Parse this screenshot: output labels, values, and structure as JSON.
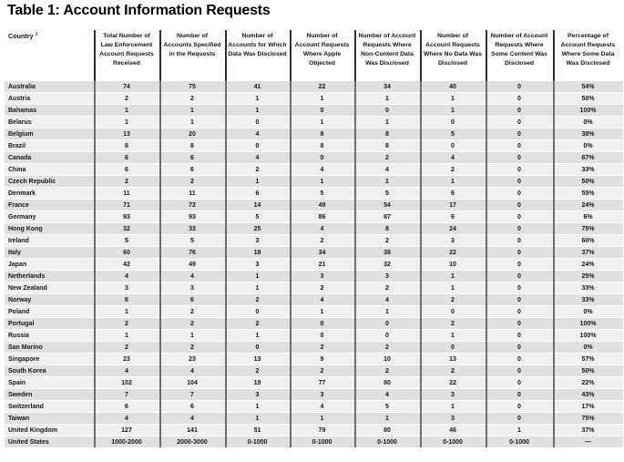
{
  "title": "Table 1: Account Information Requests",
  "table": {
    "country_header": "Country",
    "country_header_sup": "2",
    "columns": [
      "Total Number of\nLaw Enforcement\nAccount Requests\nReceived",
      "Number of\nAccounts Specified\nin the Requests",
      "Number of\nAccounts for Which\nData Was Disclosed",
      "Number of\nAccount Requests\nWhere Apple\nObjected",
      "Number of Account\nRequests Where\nNon-Content Data\nWas Disclosed",
      "Number of\nAccount Requests\nWhere No Data Was\nDisclosed",
      "Number of Account\nRequests Where\nSome Content Was\nDisclosed",
      "Percentage of\nAccount Requests\nWhere Some Data\nWas Disclosed"
    ],
    "rows": [
      {
        "country": "Australia",
        "values": [
          "74",
          "75",
          "41",
          "22",
          "34",
          "40",
          "0",
          "54%"
        ]
      },
      {
        "country": "Austria",
        "values": [
          "2",
          "2",
          "1",
          "1",
          "1",
          "1",
          "0",
          "50%"
        ]
      },
      {
        "country": "Bahamas",
        "values": [
          "1",
          "1",
          "1",
          "0",
          "0",
          "1",
          "0",
          "100%"
        ]
      },
      {
        "country": "Belarus",
        "values": [
          "1",
          "1",
          "0",
          "1",
          "1",
          "0",
          "0",
          "0%"
        ]
      },
      {
        "country": "Belgium",
        "values": [
          "13",
          "20",
          "4",
          "8",
          "8",
          "5",
          "0",
          "38%"
        ]
      },
      {
        "country": "Brazil",
        "values": [
          "8",
          "8",
          "0",
          "8",
          "8",
          "0",
          "0",
          "0%"
        ]
      },
      {
        "country": "Canada",
        "values": [
          "6",
          "6",
          "4",
          "0",
          "2",
          "4",
          "0",
          "67%"
        ]
      },
      {
        "country": "China",
        "values": [
          "6",
          "6",
          "2",
          "4",
          "4",
          "2",
          "0",
          "33%"
        ]
      },
      {
        "country": "Czech Republic",
        "values": [
          "2",
          "2",
          "1",
          "1",
          "1",
          "1",
          "0",
          "50%"
        ]
      },
      {
        "country": "Denmark",
        "values": [
          "11",
          "11",
          "6",
          "5",
          "5",
          "6",
          "0",
          "55%"
        ]
      },
      {
        "country": "France",
        "values": [
          "71",
          "72",
          "14",
          "49",
          "54",
          "17",
          "0",
          "24%"
        ]
      },
      {
        "country": "Germany",
        "values": [
          "93",
          "93",
          "5",
          "86",
          "87",
          "6",
          "0",
          "6%"
        ]
      },
      {
        "country": "Hong Kong",
        "values": [
          "32",
          "33",
          "25",
          "4",
          "8",
          "24",
          "0",
          "75%"
        ]
      },
      {
        "country": "Ireland",
        "values": [
          "5",
          "5",
          "3",
          "2",
          "2",
          "3",
          "0",
          "60%"
        ]
      },
      {
        "country": "Italy",
        "values": [
          "60",
          "76",
          "18",
          "34",
          "38",
          "22",
          "0",
          "37%"
        ]
      },
      {
        "country": "Japan",
        "values": [
          "42",
          "49",
          "3",
          "21",
          "32",
          "10",
          "0",
          "24%"
        ]
      },
      {
        "country": "Netherlands",
        "values": [
          "4",
          "4",
          "1",
          "3",
          "3",
          "1",
          "0",
          "25%"
        ]
      },
      {
        "country": "New Zealand",
        "values": [
          "3",
          "3",
          "1",
          "2",
          "2",
          "1",
          "0",
          "33%"
        ]
      },
      {
        "country": "Norway",
        "values": [
          "6",
          "6",
          "2",
          "4",
          "4",
          "2",
          "0",
          "33%"
        ]
      },
      {
        "country": "Poland",
        "values": [
          "1",
          "2",
          "0",
          "1",
          "1",
          "0",
          "0",
          "0%"
        ]
      },
      {
        "country": "Portugal",
        "values": [
          "2",
          "2",
          "2",
          "0",
          "0",
          "2",
          "0",
          "100%"
        ]
      },
      {
        "country": "Russia",
        "values": [
          "1",
          "1",
          "1",
          "0",
          "0",
          "1",
          "0",
          "100%"
        ]
      },
      {
        "country": "San Marino",
        "values": [
          "2",
          "2",
          "0",
          "2",
          "2",
          "0",
          "0",
          "0%"
        ]
      },
      {
        "country": "Singapore",
        "values": [
          "23",
          "23",
          "13",
          "9",
          "10",
          "13",
          "0",
          "57%"
        ]
      },
      {
        "country": "South Korea",
        "values": [
          "4",
          "4",
          "2",
          "2",
          "2",
          "2",
          "0",
          "50%"
        ]
      },
      {
        "country": "Spain",
        "values": [
          "102",
          "104",
          "19",
          "77",
          "80",
          "22",
          "0",
          "22%"
        ]
      },
      {
        "country": "Sweden",
        "values": [
          "7",
          "7",
          "3",
          "3",
          "4",
          "3",
          "0",
          "43%"
        ]
      },
      {
        "country": "Switzerland",
        "values": [
          "6",
          "6",
          "1",
          "4",
          "5",
          "1",
          "0",
          "17%"
        ]
      },
      {
        "country": "Taiwan",
        "values": [
          "4",
          "4",
          "1",
          "1",
          "1",
          "3",
          "0",
          "75%"
        ]
      },
      {
        "country": "United Kingdom",
        "values": [
          "127",
          "141",
          "51",
          "79",
          "80",
          "46",
          "1",
          "37%"
        ]
      },
      {
        "country": "United States",
        "values": [
          "1000-2000",
          "2000-3000",
          "0-1000",
          "0-1000",
          "0-1000",
          "0-1000",
          "0-1000",
          "—"
        ]
      }
    ]
  },
  "colors": {
    "row_dark": "#dfe0e2",
    "row_light": "#eff0f1",
    "header_divider": "#303030",
    "body_divider": "#6e6e6e",
    "text": "#161616"
  }
}
